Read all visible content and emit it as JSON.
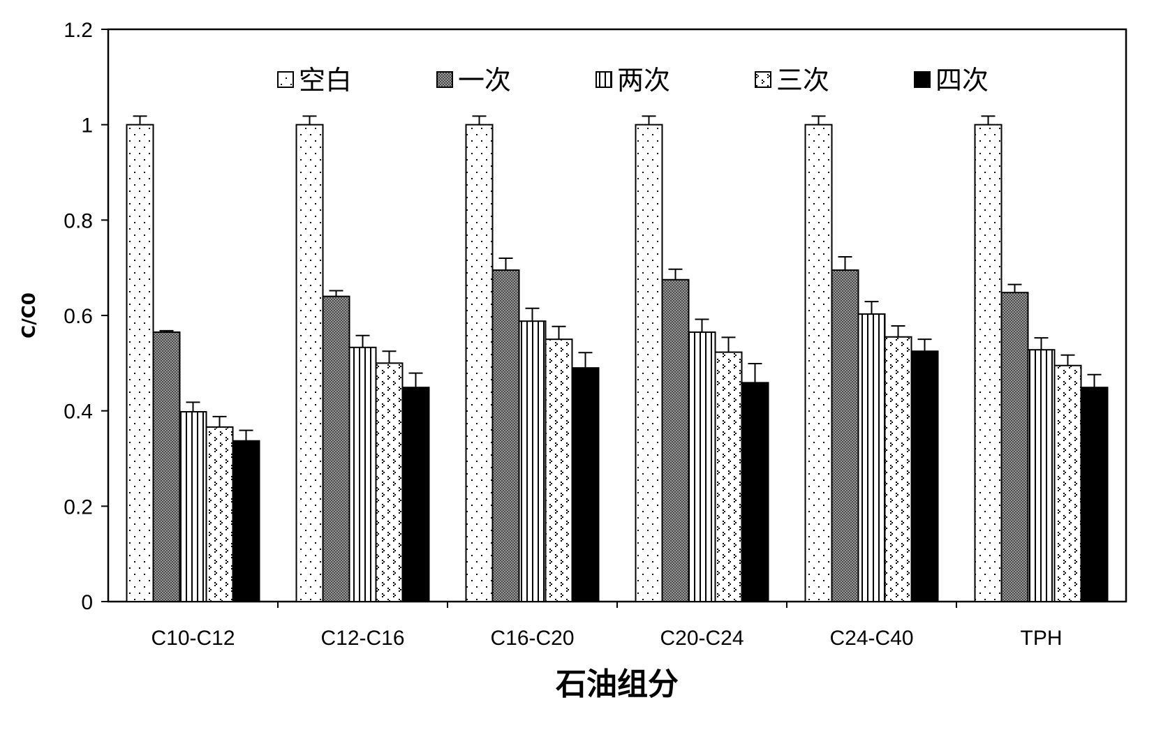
{
  "chart_data": {
    "type": "bar",
    "xlabel": "石油组分",
    "ylabel": "C/C0",
    "ylim": [
      0,
      1.2
    ],
    "yticks": [
      "0",
      "0.2",
      "0.4",
      "0.6",
      "0.8",
      "1",
      "1.2"
    ],
    "categories": [
      "C10-C12",
      "C12-C16",
      "C16-C20",
      "C20-C24",
      "C24-C40",
      "TPH"
    ],
    "legend_position": "top (inside plot)",
    "error_bars": true,
    "series": [
      {
        "name": "空白",
        "pattern": "dots-sparse",
        "values": [
          1.0,
          1.0,
          1.0,
          1.0,
          1.0,
          1.0
        ],
        "errors": [
          0.018,
          0.018,
          0.018,
          0.018,
          0.018,
          0.018
        ]
      },
      {
        "name": "一次",
        "pattern": "crosshatch-dark",
        "values": [
          0.565,
          0.64,
          0.695,
          0.675,
          0.695,
          0.648
        ],
        "errors": [
          0.003,
          0.012,
          0.025,
          0.022,
          0.028,
          0.017
        ]
      },
      {
        "name": "两次",
        "pattern": "vertical-lines",
        "values": [
          0.398,
          0.533,
          0.588,
          0.565,
          0.603,
          0.528
        ],
        "errors": [
          0.02,
          0.025,
          0.027,
          0.027,
          0.026,
          0.025
        ]
      },
      {
        "name": "三次",
        "pattern": "zigzag-dots",
        "values": [
          0.366,
          0.5,
          0.55,
          0.523,
          0.555,
          0.495
        ],
        "errors": [
          0.022,
          0.025,
          0.027,
          0.031,
          0.023,
          0.022
        ]
      },
      {
        "name": "四次",
        "pattern": "solid-black",
        "values": [
          0.337,
          0.449,
          0.49,
          0.459,
          0.525,
          0.449
        ],
        "errors": [
          0.022,
          0.03,
          0.032,
          0.04,
          0.025,
          0.027
        ]
      }
    ]
  }
}
